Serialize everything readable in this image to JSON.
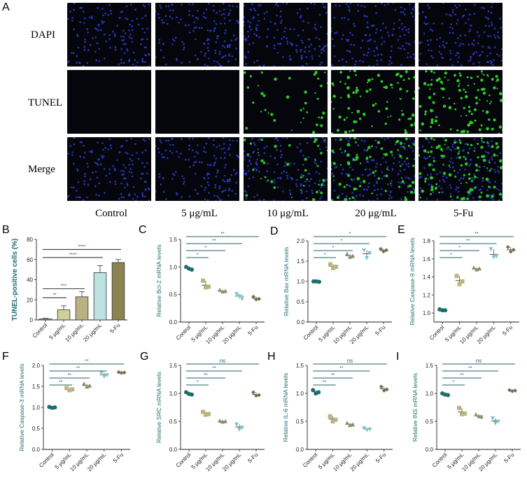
{
  "panel_a": {
    "label": "A",
    "rows": [
      "DAPI",
      "TUNEL",
      "Merge"
    ],
    "columns": [
      "Control",
      "5 μg/mL",
      "10 μg/mL",
      "20 μg/mL",
      "5-Fu"
    ],
    "green_intensity": [
      0.0,
      0.0,
      0.35,
      0.75,
      1.0
    ],
    "colors": {
      "nuclei": "#2b3fd6",
      "tunel": "#32d42c",
      "background": "#05060c"
    }
  },
  "chart_data": [
    {
      "panel": "B",
      "type": "bar",
      "categories": [
        "Control",
        "5 μg/mL",
        "10 μg/mL",
        "20 μg/mL",
        "5-Fu"
      ],
      "values": [
        1,
        10,
        23,
        47,
        57
      ],
      "errors": [
        0.5,
        4,
        5,
        7,
        3
      ],
      "ylabel": "TUNEL-positive cells (%)",
      "ylim": [
        0,
        80
      ],
      "yticks": [
        0,
        20,
        40,
        60,
        80
      ],
      "colors": [
        "#7fb3b3",
        "#cfcf9a",
        "#b8b283",
        "#bde3e0",
        "#8c8352"
      ],
      "significance": [
        "**",
        "***",
        "****",
        "****"
      ]
    },
    {
      "panel": "C",
      "type": "scatter",
      "categories": [
        "Control",
        "5 μg/mL",
        "10 μg/mL",
        "20 μg/mL",
        "5-Fu"
      ],
      "means": [
        0.98,
        0.67,
        0.56,
        0.47,
        0.43
      ],
      "points": [
        [
          1.0,
          0.97,
          0.95
        ],
        [
          0.75,
          0.63,
          0.64
        ],
        [
          0.58,
          0.55,
          0.56
        ],
        [
          0.51,
          0.47,
          0.42
        ],
        [
          0.46,
          0.41,
          0.42
        ]
      ],
      "ylabel": "Relative Bcl-2 mRNA levels",
      "ylim": [
        0.0,
        1.5
      ],
      "yticks": [
        "0.0",
        "0.5",
        "1.0",
        "1.5"
      ],
      "significance": [
        "*",
        "*",
        "**",
        "**"
      ]
    },
    {
      "panel": "D",
      "type": "scatter",
      "categories": [
        "Control",
        "5 μg/mL",
        "10 μg/mL",
        "20 μg/mL",
        "5-Fu"
      ],
      "means": [
        1.0,
        1.37,
        1.63,
        1.68,
        1.77
      ],
      "points": [
        [
          1.0,
          1.0,
          0.99
        ],
        [
          1.42,
          1.33,
          1.36
        ],
        [
          1.67,
          1.6,
          1.62
        ],
        [
          1.77,
          1.58,
          1.7
        ],
        [
          1.8,
          1.74,
          1.77
        ]
      ],
      "ylabel": "Relative Bax mRNA levels",
      "ylim": [
        0.0,
        2.0
      ],
      "yticks": [
        "0.0",
        "0.5",
        "1.0",
        "1.5",
        "2.0"
      ],
      "significance": [
        "*",
        "*",
        "*",
        "*"
      ]
    },
    {
      "panel": "E",
      "type": "scatter",
      "categories": [
        "Control",
        "5 μg/mL",
        "10 μg/mL",
        "20 μg/mL",
        "5-Fu"
      ],
      "means": [
        1.03,
        1.36,
        1.49,
        1.65,
        1.7
      ],
      "points": [
        [
          1.04,
          1.03,
          1.03
        ],
        [
          1.41,
          1.32,
          1.35
        ],
        [
          1.5,
          1.48,
          1.49
        ],
        [
          1.71,
          1.62,
          1.63
        ],
        [
          1.73,
          1.68,
          1.7
        ]
      ],
      "ylabel": "Relative Caspase-9 mRNA levels",
      "ylim": [
        0.9,
        1.8
      ],
      "yticks": [
        "1.0",
        "1.2",
        "1.4",
        "1.6",
        "1.8"
      ],
      "significance": [
        "*",
        "*",
        "**",
        "**"
      ]
    },
    {
      "panel": "F",
      "type": "scatter",
      "categories": [
        "Control",
        "5 μg/mL",
        "10 μg/mL",
        "20 μg/mL",
        "5-Fu"
      ],
      "means": [
        1.0,
        1.43,
        1.52,
        1.78,
        1.83
      ],
      "points": [
        [
          1.01,
          0.99,
          1.0
        ],
        [
          1.46,
          1.41,
          1.43
        ],
        [
          1.56,
          1.49,
          1.51
        ],
        [
          1.83,
          1.74,
          1.77
        ],
        [
          1.84,
          1.82,
          1.83
        ]
      ],
      "ylabel": "Relative Caspase-3 mRNA levels",
      "ylim": [
        0.0,
        2.0
      ],
      "yticks": [
        "0.0",
        "0.5",
        "1.0",
        "1.5",
        "2.0"
      ],
      "significance": [
        "**",
        "**",
        "**",
        "**"
      ]
    },
    {
      "panel": "G",
      "type": "scatter",
      "categories": [
        "Control",
        "5 μg/mL",
        "10 μg/mL",
        "20 μg/mL",
        "5-Fu"
      ],
      "means": [
        1.0,
        0.64,
        0.5,
        0.4,
        0.98
      ],
      "points": [
        [
          1.02,
          0.99,
          0.98
        ],
        [
          0.67,
          0.62,
          0.63
        ],
        [
          0.51,
          0.49,
          0.5
        ],
        [
          0.45,
          0.36,
          0.39
        ],
        [
          1.02,
          0.96,
          0.97
        ]
      ],
      "ylabel": "Relative SRC mRNA levels",
      "ylim": [
        0.0,
        1.5
      ],
      "yticks": [
        "0.0",
        "0.5",
        "1.0",
        "1.5"
      ],
      "significance": [
        "*",
        "**",
        "**",
        "ns"
      ]
    },
    {
      "panel": "H",
      "type": "scatter",
      "categories": [
        "Control",
        "5 μg/mL",
        "10 μg/mL",
        "20 μg/mL",
        "5-Fu"
      ],
      "means": [
        1.03,
        0.54,
        0.45,
        0.37,
        1.08
      ],
      "points": [
        [
          1.06,
          1.0,
          1.02
        ],
        [
          0.59,
          0.5,
          0.53
        ],
        [
          0.47,
          0.43,
          0.44
        ],
        [
          0.38,
          0.35,
          0.36
        ],
        [
          1.12,
          1.05,
          1.07
        ]
      ],
      "ylabel": "Relative IL-6 mRNA levels",
      "ylim": [
        0.0,
        1.5
      ],
      "yticks": [
        "0.0",
        "0.5",
        "1.0",
        "1.5"
      ],
      "significance": [
        "**",
        "**",
        "**",
        "ns"
      ]
    },
    {
      "panel": "I",
      "type": "scatter",
      "categories": [
        "Control",
        "5 μg/mL",
        "10 μg/mL",
        "20 μg/mL",
        "5-Fu"
      ],
      "means": [
        0.99,
        0.67,
        0.6,
        0.51,
        1.05
      ],
      "points": [
        [
          1.0,
          0.98,
          0.97
        ],
        [
          0.74,
          0.63,
          0.64
        ],
        [
          0.62,
          0.59,
          0.58
        ],
        [
          0.56,
          0.47,
          0.5
        ],
        [
          1.06,
          1.04,
          1.05
        ]
      ],
      "ylabel": "Relative INS mRNA levels",
      "ylim": [
        0.0,
        1.5
      ],
      "yticks": [
        "0.0",
        "0.5",
        "1.0",
        "1.5"
      ],
      "significance": [
        "*",
        "**",
        "**",
        "ns"
      ]
    }
  ],
  "scatter_colors": [
    "#1a6e6a",
    "#bab57e",
    "#8f8c6a",
    "#7cc4c6",
    "#7a7050"
  ],
  "sig_line_color": "#1f5f60"
}
